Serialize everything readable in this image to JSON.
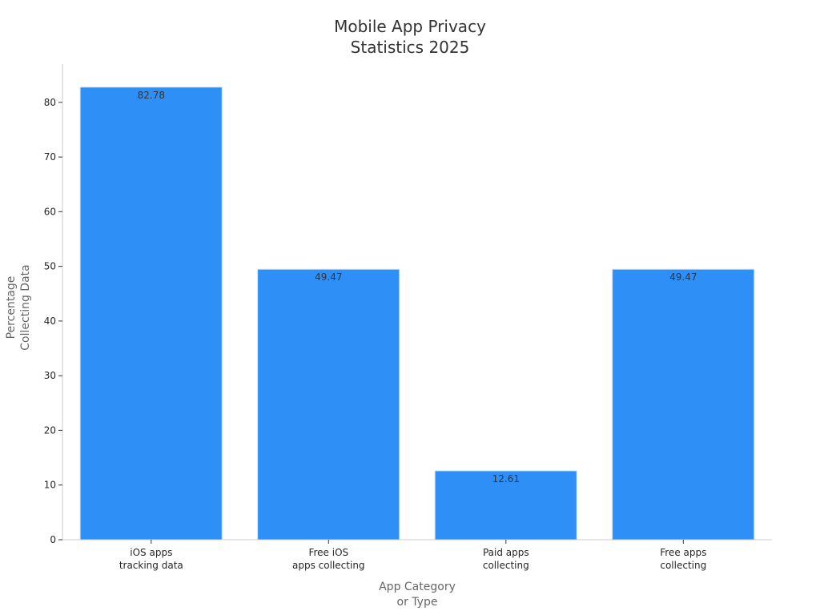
{
  "chart_data": {
    "type": "bar",
    "title": [
      "Mobile App Privacy",
      "Statistics 2025"
    ],
    "xlabel": [
      "App Category",
      "or Type"
    ],
    "ylabel": [
      "Percentage",
      "Collecting Data"
    ],
    "categories": [
      [
        "iOS apps",
        "tracking data"
      ],
      [
        "Free iOS",
        "apps collecting"
      ],
      [
        "Paid apps",
        "collecting"
      ],
      [
        "Free apps",
        "collecting"
      ]
    ],
    "values": [
      82.78,
      49.47,
      12.61,
      49.47
    ],
    "value_labels": [
      "82.78",
      "49.47",
      "12.61",
      "49.47"
    ],
    "yticks": [
      0,
      10,
      20,
      30,
      40,
      50,
      60,
      70,
      80
    ],
    "ylim": [
      0,
      87
    ],
    "grid": false,
    "legend": "none",
    "colors": {
      "bar": "#2e90f7",
      "bar_edge": "#cfe3f8",
      "axis": "#cccccc"
    }
  }
}
